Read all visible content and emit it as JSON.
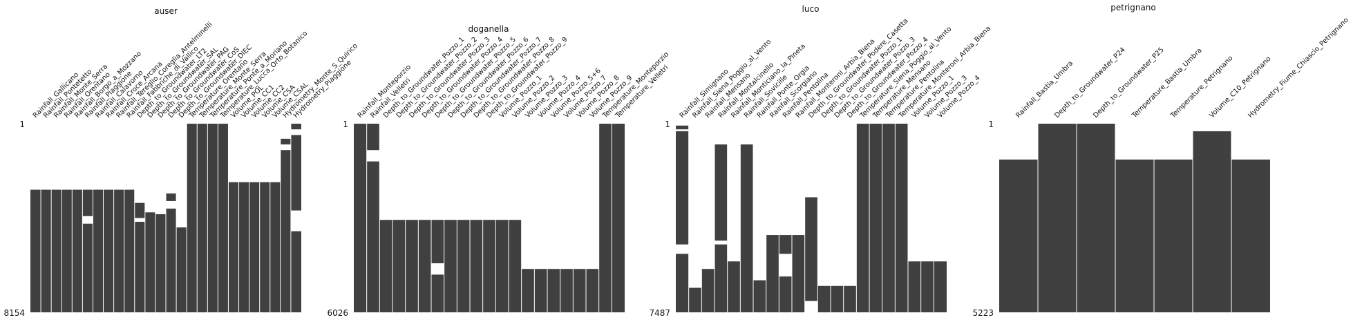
{
  "chart_data": [
    {
      "type": "missingness-matrix",
      "title": "auser",
      "total_rows": 8154,
      "row_labels": [
        "1",
        "8154"
      ],
      "bar_color": "#404040",
      "columns": [
        {
          "name": "Rainfall_Gallicano",
          "present": [
            [
              0.35,
              1.0
            ]
          ]
        },
        {
          "name": "Rainfall_Pontetetto",
          "present": [
            [
              0.35,
              1.0
            ]
          ]
        },
        {
          "name": "Rainfall_Monte_Serra",
          "present": [
            [
              0.35,
              1.0
            ]
          ]
        },
        {
          "name": "Rainfall_Orentano",
          "present": [
            [
              0.35,
              1.0
            ]
          ]
        },
        {
          "name": "Rainfall_Borgo_a_Mozzano",
          "present": [
            [
              0.35,
              1.0
            ]
          ]
        },
        {
          "name": "Rainfall_Piaggione",
          "present": [
            [
              0.35,
              0.49
            ],
            [
              0.53,
              1.0
            ]
          ]
        },
        {
          "name": "Rainfall_Calavorno",
          "present": [
            [
              0.35,
              1.0
            ]
          ]
        },
        {
          "name": "Rainfall_Croce_Arcana",
          "present": [
            [
              0.35,
              1.0
            ]
          ]
        },
        {
          "name": "Rainfall_Tereglio_Coreglia_Antelminelli",
          "present": [
            [
              0.35,
              1.0
            ]
          ]
        },
        {
          "name": "Rainfall_Fabbriche_di_Vallico",
          "present": [
            [
              0.35,
              1.0
            ]
          ]
        },
        {
          "name": "Depth_to_Groundwater_LT2",
          "present": [
            [
              0.42,
              0.5
            ],
            [
              0.52,
              1.0
            ]
          ]
        },
        {
          "name": "Depth_to_Groundwater_SAL",
          "present": [
            [
              0.47,
              1.0
            ]
          ]
        },
        {
          "name": "Depth_to_Groundwater_PAG",
          "present": [
            [
              0.48,
              1.0
            ]
          ]
        },
        {
          "name": "Depth_to_Groundwater_CoS",
          "present": [
            [
              0.37,
              0.41
            ],
            [
              0.45,
              1.0
            ]
          ]
        },
        {
          "name": "Depth_to_Groundwater_DIEC",
          "present": [
            [
              0.55,
              1.0
            ]
          ]
        },
        {
          "name": "Temperature_Orentano",
          "present": [
            [
              0.0,
              1.0
            ]
          ]
        },
        {
          "name": "Temperature_Monte_Serra",
          "present": [
            [
              0.0,
              1.0
            ]
          ]
        },
        {
          "name": "Temperature_Ponte_a_Moriano",
          "present": [
            [
              0.0,
              1.0
            ]
          ]
        },
        {
          "name": "Temperature_Lucca_Orto_Botanico",
          "present": [
            [
              0.0,
              1.0
            ]
          ]
        },
        {
          "name": "Volume_POL",
          "present": [
            [
              0.31,
              1.0
            ]
          ]
        },
        {
          "name": "Volume_CC1",
          "present": [
            [
              0.31,
              1.0
            ]
          ]
        },
        {
          "name": "Volume_CC2",
          "present": [
            [
              0.31,
              1.0
            ]
          ]
        },
        {
          "name": "Volume_CSA",
          "present": [
            [
              0.31,
              1.0
            ]
          ]
        },
        {
          "name": "Volume_CSAL",
          "present": [
            [
              0.31,
              1.0
            ]
          ]
        },
        {
          "name": "Hydrometry_Monte_S_Quirico",
          "present": [
            [
              0.08,
              0.11
            ],
            [
              0.14,
              1.0
            ]
          ]
        },
        {
          "name": "Hydrometry_Piaggione",
          "present": [
            [
              0.0,
              0.03
            ],
            [
              0.06,
              0.46
            ],
            [
              0.57,
              1.0
            ]
          ]
        }
      ]
    },
    {
      "type": "missingness-matrix",
      "title": "doganella",
      "total_rows": 6026,
      "row_labels": [
        "1",
        "6026"
      ],
      "bar_color": "#404040",
      "columns": [
        {
          "name": "Rainfall_Monteporzio",
          "present": [
            [
              0.0,
              1.0
            ]
          ]
        },
        {
          "name": "Rainfall_Velletri",
          "present": [
            [
              0.0,
              0.14
            ],
            [
              0.2,
              1.0
            ]
          ]
        },
        {
          "name": "Depth_to_Groundwater_Pozzo_1",
          "present": [
            [
              0.51,
              1.0
            ]
          ]
        },
        {
          "name": "Depth_to_Groundwater_Pozzo_2",
          "present": [
            [
              0.51,
              1.0
            ]
          ]
        },
        {
          "name": "Depth_to_Groundwater_Pozzo_3",
          "present": [
            [
              0.51,
              1.0
            ]
          ]
        },
        {
          "name": "Depth_to_Groundwater_Pozzo_4",
          "present": [
            [
              0.51,
              1.0
            ]
          ]
        },
        {
          "name": "Depth_to_Groundwater_Pozzo_5",
          "present": [
            [
              0.51,
              0.74
            ],
            [
              0.8,
              1.0
            ]
          ]
        },
        {
          "name": "Depth_to_Groundwater_Pozzo_6",
          "present": [
            [
              0.51,
              1.0
            ]
          ]
        },
        {
          "name": "Depth_to_Groundwater_Pozzo_7",
          "present": [
            [
              0.51,
              1.0
            ]
          ]
        },
        {
          "name": "Depth_to_Groundwater_Pozzo_8",
          "present": [
            [
              0.51,
              1.0
            ]
          ]
        },
        {
          "name": "Depth_to_Groundwater_Pozzo_9",
          "present": [
            [
              0.51,
              1.0
            ]
          ]
        },
        {
          "name": "Volume_Pozzo_1",
          "present": [
            [
              0.51,
              1.0
            ]
          ]
        },
        {
          "name": "Volume_Pozzo_2",
          "present": [
            [
              0.51,
              1.0
            ]
          ]
        },
        {
          "name": "Volume_Pozzo_3",
          "present": [
            [
              0.77,
              1.0
            ]
          ]
        },
        {
          "name": "Volume_Pozzo_4",
          "present": [
            [
              0.77,
              1.0
            ]
          ]
        },
        {
          "name": "Volume_Pozzo_5+6",
          "present": [
            [
              0.77,
              1.0
            ]
          ]
        },
        {
          "name": "Volume_Pozzo_7",
          "present": [
            [
              0.77,
              1.0
            ]
          ]
        },
        {
          "name": "Volume_Pozzo_8",
          "present": [
            [
              0.77,
              1.0
            ]
          ]
        },
        {
          "name": "Volume_Pozzo_9",
          "present": [
            [
              0.77,
              1.0
            ]
          ]
        },
        {
          "name": "Temperature_Monteporzio",
          "present": [
            [
              0.0,
              1.0
            ]
          ]
        },
        {
          "name": "Temperature_Velletri",
          "present": [
            [
              0.0,
              1.0
            ]
          ]
        }
      ]
    },
    {
      "type": "missingness-matrix",
      "title": "luco",
      "total_rows": 7487,
      "row_labels": [
        "1",
        "7487"
      ],
      "bar_color": "#404040",
      "columns": [
        {
          "name": "Rainfall_Simignano",
          "present": [
            [
              0.01,
              0.03
            ],
            [
              0.04,
              0.64
            ],
            [
              0.69,
              1.0
            ]
          ]
        },
        {
          "name": "Rainfall_Siena_Poggio_al_Vento",
          "present": [
            [
              0.87,
              1.0
            ]
          ]
        },
        {
          "name": "Rainfall_Mensano",
          "present": [
            [
              0.77,
              1.0
            ]
          ]
        },
        {
          "name": "Rainfall_Montalcinello",
          "present": [
            [
              0.11,
              0.62
            ],
            [
              0.64,
              1.0
            ]
          ]
        },
        {
          "name": "Rainfall_Monticiano_la_Pineta",
          "present": [
            [
              0.73,
              1.0
            ]
          ]
        },
        {
          "name": "Rainfall_Sovicille",
          "present": [
            [
              0.11,
              1.0
            ]
          ]
        },
        {
          "name": "Rainfall_Ponte_Orgia",
          "present": [
            [
              0.83,
              1.0
            ]
          ]
        },
        {
          "name": "Rainfall_Scorgiano",
          "present": [
            [
              0.59,
              1.0
            ]
          ]
        },
        {
          "name": "Rainfall_Pentolina",
          "present": [
            [
              0.59,
              0.69
            ],
            [
              0.81,
              1.0
            ]
          ]
        },
        {
          "name": "Rainfall_Monteroni_Arbia_Biena",
          "present": [
            [
              0.59,
              1.0
            ]
          ]
        },
        {
          "name": "Depth_to_Groundwater_Podere_Casetta",
          "present": [
            [
              0.39,
              0.94
            ]
          ]
        },
        {
          "name": "Depth_to_Groundwater_Pozzo_1",
          "present": [
            [
              0.86,
              1.0
            ]
          ]
        },
        {
          "name": "Depth_to_Groundwater_Pozzo_3",
          "present": [
            [
              0.86,
              1.0
            ]
          ]
        },
        {
          "name": "Depth_to_Groundwater_Pozzo_4",
          "present": [
            [
              0.86,
              1.0
            ]
          ]
        },
        {
          "name": "Temperature_Siena_Poggio_al_Vento",
          "present": [
            [
              0.0,
              1.0
            ]
          ]
        },
        {
          "name": "Temperature_Mensano",
          "present": [
            [
              0.0,
              1.0
            ]
          ]
        },
        {
          "name": "Temperature_Pentolina",
          "present": [
            [
              0.0,
              1.0
            ]
          ]
        },
        {
          "name": "Temperature_Monteroni_Arbia_Biena",
          "present": [
            [
              0.0,
              1.0
            ]
          ]
        },
        {
          "name": "Volume_Pozzo_1",
          "present": [
            [
              0.73,
              1.0
            ]
          ]
        },
        {
          "name": "Volume_Pozzo_3",
          "present": [
            [
              0.73,
              1.0
            ]
          ]
        },
        {
          "name": "Volume_Pozzo_4",
          "present": [
            [
              0.73,
              1.0
            ]
          ]
        }
      ]
    },
    {
      "type": "missingness-matrix",
      "title": "petrignano",
      "total_rows": 5223,
      "row_labels": [
        "1",
        "5223"
      ],
      "bar_color": "#404040",
      "columns": [
        {
          "name": "Rainfall_Bastia_Umbra",
          "present": [
            [
              0.19,
              1.0
            ]
          ]
        },
        {
          "name": "Depth_to_Groundwater_P24",
          "present": [
            [
              0.0,
              1.0
            ]
          ]
        },
        {
          "name": "Depth_to_Groundwater_P25",
          "present": [
            [
              0.0,
              1.0
            ]
          ]
        },
        {
          "name": "Temperature_Bastia_Umbra",
          "present": [
            [
              0.19,
              1.0
            ]
          ]
        },
        {
          "name": "Temperature_Petrignano",
          "present": [
            [
              0.19,
              1.0
            ]
          ]
        },
        {
          "name": "Volume_C10_Petrignano",
          "present": [
            [
              0.04,
              1.0
            ]
          ]
        },
        {
          "name": "Hydrometry_Fiume_Chiascio_Petrignano",
          "present": [
            [
              0.19,
              1.0
            ]
          ]
        }
      ]
    }
  ]
}
